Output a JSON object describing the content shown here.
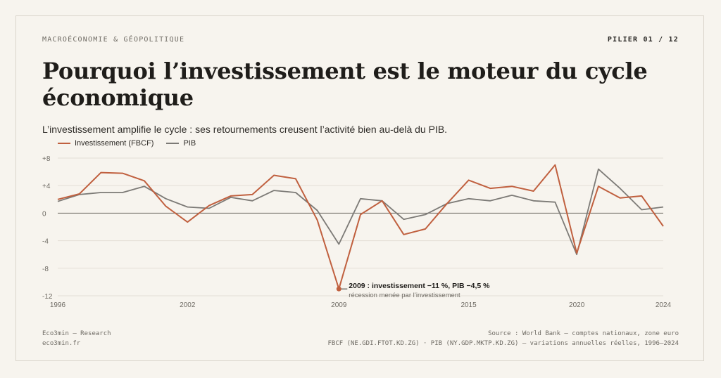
{
  "header": {
    "kicker": "MACROÉCONOMIE & GÉOPOLITIQUE",
    "pilier": "PILIER 01 / 12",
    "title": "Pourquoi l’investissement est le moteur du cycle économique",
    "subtitle": "L’investissement amplifie le cycle : ses retournements creusent l’activité bien au-delà du PIB."
  },
  "footer": {
    "brand": "Eco3min — Research",
    "site": "eco3min.fr",
    "source1": "Source : World Bank — comptes nationaux, zone euro",
    "source2": "FBCF (NE.GDI.FTOT.KD.ZG) · PIB (NY.GDP.MKTP.KD.ZG) — variations annuelles réelles, 1996–2024"
  },
  "colors": {
    "investissement": "#c0603f",
    "pib": "#7c7a76",
    "grid": "#e3ded5",
    "zero": "#6e6a63"
  },
  "chart_data": {
    "type": "line",
    "x": [
      1996,
      1997,
      1998,
      1999,
      2000,
      2001,
      2002,
      2003,
      2004,
      2005,
      2006,
      2007,
      2008,
      2009,
      2010,
      2011,
      2012,
      2013,
      2014,
      2015,
      2016,
      2017,
      2018,
      2019,
      2020,
      2021,
      2022,
      2023,
      2024
    ],
    "series": [
      {
        "name": "Investissement (FBCF)",
        "color": "#c0603f",
        "values": [
          2.0,
          2.8,
          5.9,
          5.8,
          4.7,
          1.0,
          -1.3,
          1.1,
          2.5,
          2.7,
          5.5,
          5.0,
          -1.0,
          -11.0,
          -0.2,
          1.8,
          -3.1,
          -2.3,
          1.4,
          4.8,
          3.6,
          3.9,
          3.2,
          7.0,
          -5.8,
          3.9,
          2.2,
          2.5,
          -1.9
        ]
      },
      {
        "name": "PIB",
        "color": "#7c7a76",
        "values": [
          1.7,
          2.7,
          3.0,
          3.0,
          3.9,
          2.1,
          0.9,
          0.7,
          2.3,
          1.8,
          3.3,
          3.0,
          0.4,
          -4.5,
          2.1,
          1.8,
          -0.9,
          -0.2,
          1.4,
          2.1,
          1.8,
          2.6,
          1.8,
          1.6,
          -6.0,
          6.4,
          3.6,
          0.5,
          0.9
        ]
      }
    ],
    "ylim": [
      -12,
      8
    ],
    "yticks": [
      8,
      4,
      0,
      -4,
      -8,
      -12
    ],
    "ytick_labels": [
      "+8",
      "+4",
      "0",
      "-4",
      "-8",
      "-12"
    ],
    "xticks": [
      1996,
      2002,
      2009,
      2015,
      2020,
      2024
    ],
    "xtick_labels": [
      "1996",
      "2002",
      "2009",
      "2015",
      "2020",
      "2024"
    ],
    "grid": true,
    "legend": "top-left",
    "annotation": {
      "x": 2009,
      "y": -11.0,
      "label": "2009 : investissement −11 %, PIB −4,5 %",
      "sublabel": "récession menée par l’investissement"
    }
  }
}
